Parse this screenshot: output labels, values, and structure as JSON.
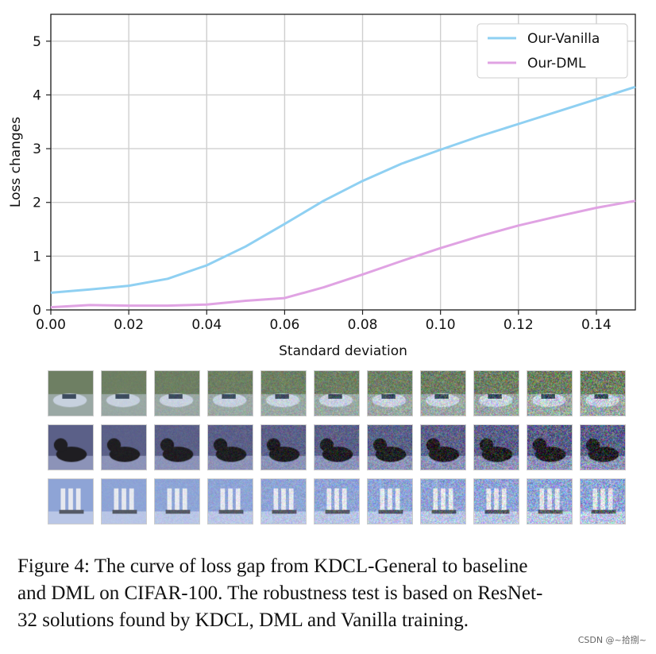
{
  "chart_data": {
    "type": "line",
    "xlabel": "Standard deviation",
    "ylabel": "Loss changes",
    "xlim": [
      0.0,
      0.15
    ],
    "ylim": [
      0,
      5.5
    ],
    "xticks": [
      "0.00",
      "0.02",
      "0.04",
      "0.06",
      "0.08",
      "0.10",
      "0.12",
      "0.14"
    ],
    "yticks": [
      "0",
      "1",
      "2",
      "3",
      "4",
      "5"
    ],
    "grid": true,
    "legend_position": "top-right",
    "x": [
      0.0,
      0.01,
      0.02,
      0.03,
      0.04,
      0.05,
      0.06,
      0.07,
      0.08,
      0.09,
      0.1,
      0.11,
      0.12,
      0.13,
      0.14,
      0.15
    ],
    "series": [
      {
        "name": "Our-Vanilla",
        "color": "#8fd0f2",
        "values": [
          0.32,
          0.38,
          0.45,
          0.58,
          0.83,
          1.18,
          1.6,
          2.03,
          2.4,
          2.72,
          2.98,
          3.23,
          3.46,
          3.69,
          3.92,
          4.15
        ]
      },
      {
        "name": "Our-DML",
        "color": "#e0a3e3",
        "values": [
          0.05,
          0.09,
          0.08,
          0.08,
          0.1,
          0.17,
          0.22,
          0.42,
          0.66,
          0.91,
          1.15,
          1.37,
          1.57,
          1.74,
          1.9,
          2.03
        ]
      }
    ]
  },
  "thumbnails": {
    "rows": [
      {
        "subject": "car",
        "tint": "#7d8a8e",
        "noise_levels": [
          0,
          0.015,
          0.03,
          0.045,
          0.06,
          0.075,
          0.09,
          0.105,
          0.12,
          0.135,
          0.15
        ]
      },
      {
        "subject": "cat",
        "tint": "#3d4150",
        "noise_levels": [
          0,
          0.015,
          0.03,
          0.045,
          0.06,
          0.075,
          0.09,
          0.105,
          0.12,
          0.135,
          0.15
        ]
      },
      {
        "subject": "ship",
        "tint": "#a4b3d7",
        "noise_levels": [
          0,
          0.015,
          0.03,
          0.045,
          0.06,
          0.075,
          0.09,
          0.105,
          0.12,
          0.135,
          0.15
        ]
      }
    ]
  },
  "caption": {
    "line1": "Figure 4: The curve of loss gap from KDCL-General to baseline",
    "line2": "and DML on CIFAR-100. The robustness test is based on ResNet-",
    "line3": "32 solutions found by KDCL, DML and Vanilla training."
  },
  "watermark": "CSDN @~拾捌~"
}
